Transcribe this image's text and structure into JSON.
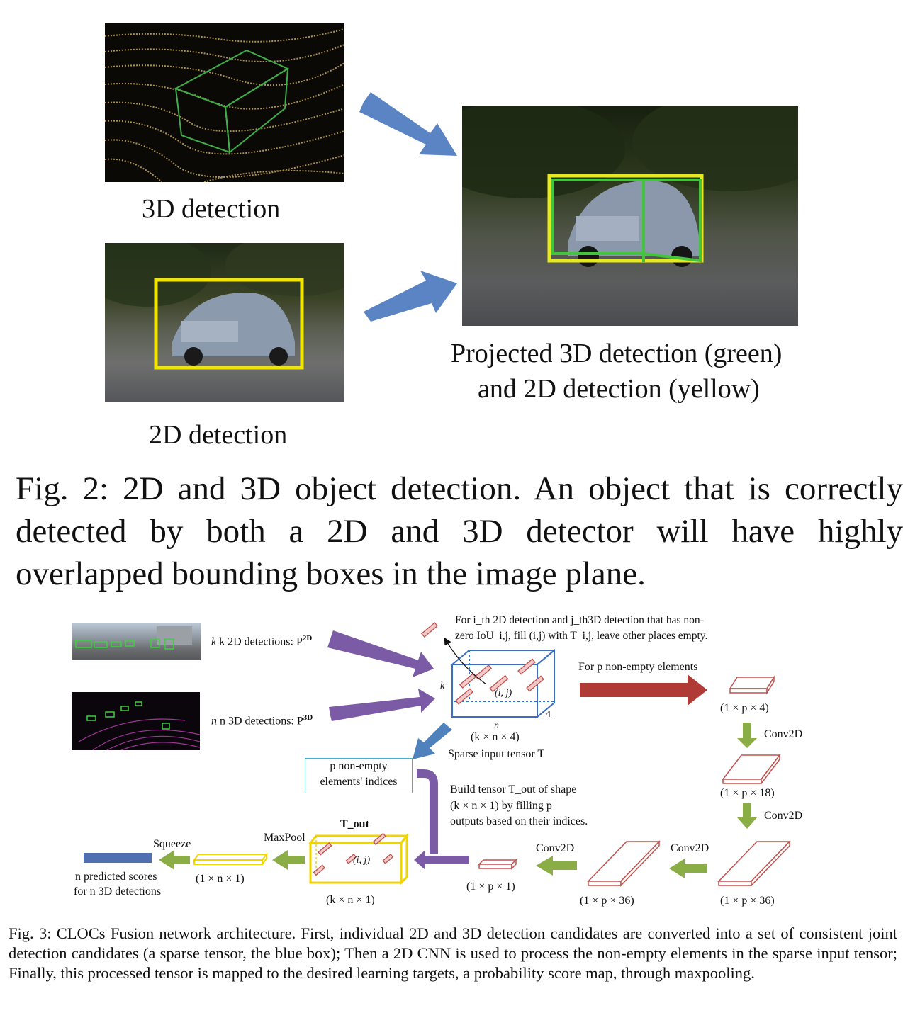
{
  "fig2": {
    "label_3d": "3D detection",
    "label_2d": "2D detection",
    "label_proj_line1": "Projected 3D detection (green)",
    "label_proj_line2": "and 2D detection (yellow)",
    "caption": "Fig. 2: 2D and 3D object detection. An object that is correctly detected by both a 2D and 3D detector will have highly overlapped bounding boxes in the image plane."
  },
  "fig3": {
    "k2d_label": "k 2D detections: P",
    "k2d_sup": "2D",
    "n3d_label": "n 3D detections: P",
    "n3d_sup": "3D",
    "note_line1": "For i_th 2D detection and j_th3D detection that has non-",
    "note_line2": "zero IoU_i,j, fill (i,j) with T_i,j, leave other places empty.",
    "k_label": "k",
    "n_label": "n",
    "four_label": "4",
    "ij_label": "(i, j)",
    "sparse_shape": "(k × n × 4)",
    "sparse_name": "Sparse input tensor T",
    "for_p_label": "For p non-empty elements",
    "shape_p4": "(1 × p × 4)",
    "conv1": "Conv2D",
    "shape_p18": "(1 × p × 18)",
    "conv2": "Conv2D",
    "shape_p36_right": "(1 × p × 36)",
    "conv3": "Conv2D",
    "shape_p36_left": "(1 × p × 36)",
    "conv4": "Conv2D",
    "shape_p1": "(1 × p × 1)",
    "indices_line1": "p non-empty",
    "indices_line2": "elements' indices",
    "build_line1": "Build tensor T_out of shape",
    "build_line2": "(k × n × 1) by filling p",
    "build_line3": "outputs based on their indices.",
    "tout_label": "T_out",
    "tout_shape": "(k × n × 1)",
    "maxpool": "MaxPool",
    "shape_n1": "(1 × n × 1)",
    "squeeze": "Squeeze",
    "scores_line1": "n predicted scores",
    "scores_line2": "for n 3D detections",
    "caption": "Fig. 3: CLOCs Fusion network architecture. First, individual 2D and 3D detection candidates are converted into a set of consistent joint detection candidates (a sparse tensor, the blue box); Then a 2D CNN is used to process the non-empty elements in the sparse input tensor; Finally, this processed tensor is mapped to the desired learning targets, a probability score map, through maxpooling."
  },
  "colors": {
    "purple": "#7b5aa6",
    "blue_arrow": "#4f81bd",
    "red_arrow": "#b03a35",
    "green_arrow": "#8aad45",
    "yellow_box": "#f2d400",
    "green_box": "#3ec43e",
    "tensor_blue": "#3d6fc0",
    "tensor_red": "#c0504d"
  }
}
